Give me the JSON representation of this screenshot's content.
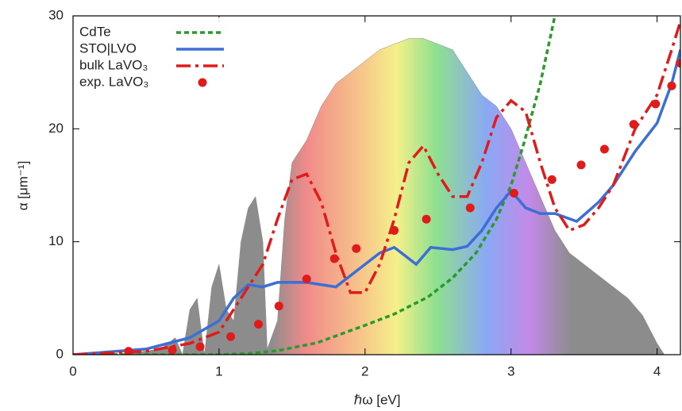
{
  "chart_data": {
    "type": "line",
    "xlabel": "ℏω  [eV]",
    "ylabel": "α  [μm⁻¹]",
    "xlim": [
      0,
      4.16
    ],
    "ylim": [
      0,
      30
    ],
    "xticks": [
      0,
      1,
      2,
      3,
      4
    ],
    "yticks": [
      0,
      10,
      20,
      30
    ],
    "legend": "upper left",
    "series": [
      {
        "kind": "area",
        "color": "#8c8c8c",
        "x": [
          0.3,
          0.6,
          0.7,
          0.75,
          0.8,
          0.85,
          0.9,
          0.95,
          1.0,
          1.05,
          1.1,
          1.15,
          1.2,
          1.25,
          1.3,
          1.33,
          1.4,
          1.45,
          1.5,
          1.6,
          1.7,
          1.8,
          1.9,
          2.0,
          2.1,
          2.2,
          2.3,
          2.4,
          2.5,
          2.6,
          2.7,
          2.8,
          2.9,
          3.0,
          3.1,
          3.2,
          3.3,
          3.4,
          3.5,
          3.6,
          3.7,
          3.8,
          3.9,
          4.0,
          4.05
        ],
        "values": [
          0,
          0.5,
          1.5,
          0,
          4,
          5,
          0,
          6,
          8,
          4,
          3,
          10,
          13,
          14,
          10,
          0.5,
          3,
          12,
          17,
          19,
          22,
          24,
          25,
          26,
          27,
          27.5,
          28,
          28,
          27.5,
          27,
          25,
          23,
          22,
          20,
          17,
          14,
          11,
          9,
          8,
          7,
          6,
          5,
          3.5,
          1,
          0
        ]
      },
      {
        "kind": "line",
        "name": "CdTe",
        "color": "#2a9a2a",
        "dash": "dotted",
        "x": [
          0,
          0.5,
          1.0,
          1.2,
          1.4,
          1.67,
          2.0,
          2.2,
          2.43,
          2.6,
          2.76,
          2.9,
          3.0,
          3.09,
          3.2,
          3.3
        ],
        "values": [
          0,
          0,
          0,
          0.1,
          0.35,
          1.05,
          2.6,
          3.6,
          5.1,
          6.8,
          9.0,
          12,
          15,
          18.8,
          24,
          30
        ]
      },
      {
        "kind": "line",
        "name": "STO|LVO",
        "color": "#3b6fd6",
        "dash": "solid",
        "x": [
          0,
          0.5,
          0.8,
          1.0,
          1.1,
          1.2,
          1.3,
          1.4,
          1.6,
          1.8,
          1.9,
          2.0,
          2.1,
          2.2,
          2.3,
          2.35,
          2.45,
          2.6,
          2.7,
          2.8,
          2.9,
          3.0,
          3.1,
          3.2,
          3.3,
          3.45,
          3.6,
          3.7,
          3.85,
          4.0,
          4.1,
          4.16
        ],
        "values": [
          0,
          0.5,
          1.5,
          3,
          5,
          6.2,
          6,
          6.4,
          6.4,
          6,
          7,
          8,
          9,
          9.5,
          8.5,
          8,
          9.5,
          9.3,
          9.6,
          11,
          13,
          14.5,
          13,
          12.5,
          12.5,
          11.8,
          13.5,
          15,
          18,
          20.5,
          24,
          27
        ]
      },
      {
        "kind": "line",
        "name": "bulk LaVO₃",
        "color": "#e01b1b",
        "dash": "dashdot",
        "x": [
          0,
          0.5,
          0.8,
          1.0,
          1.1,
          1.2,
          1.3,
          1.4,
          1.5,
          1.6,
          1.7,
          1.8,
          1.9,
          2.0,
          2.1,
          2.2,
          2.3,
          2.4,
          2.5,
          2.6,
          2.7,
          2.8,
          2.9,
          3.0,
          3.1,
          3.2,
          3.3,
          3.4,
          3.5,
          3.6,
          3.7,
          3.85,
          4.0,
          4.1,
          4.16
        ],
        "values": [
          0,
          0.3,
          1,
          2,
          4,
          6,
          8,
          12,
          15.5,
          16,
          13.5,
          9,
          5.5,
          5.5,
          8,
          12,
          17,
          18.5,
          16,
          14,
          14,
          17,
          21,
          22.5,
          21.5,
          17,
          13,
          11,
          11.5,
          13,
          15,
          20,
          23,
          27,
          29.5
        ]
      },
      {
        "kind": "points",
        "name": "exp. LaVO₃",
        "color": "#e01b1b",
        "x": [
          0.38,
          0.68,
          0.87,
          1.08,
          1.27,
          1.41,
          1.6,
          1.79,
          1.94,
          2.2,
          2.42,
          2.72,
          3.02,
          3.28,
          3.48,
          3.64,
          3.84,
          3.99,
          4.1,
          4.16
        ],
        "values": [
          0.3,
          0.4,
          0.7,
          1.6,
          2.7,
          4.3,
          6.7,
          8.5,
          9.4,
          11,
          12,
          13,
          14.3,
          15.5,
          16.8,
          18.2,
          20.4,
          22.2,
          23.8,
          25.8
        ]
      }
    ]
  }
}
